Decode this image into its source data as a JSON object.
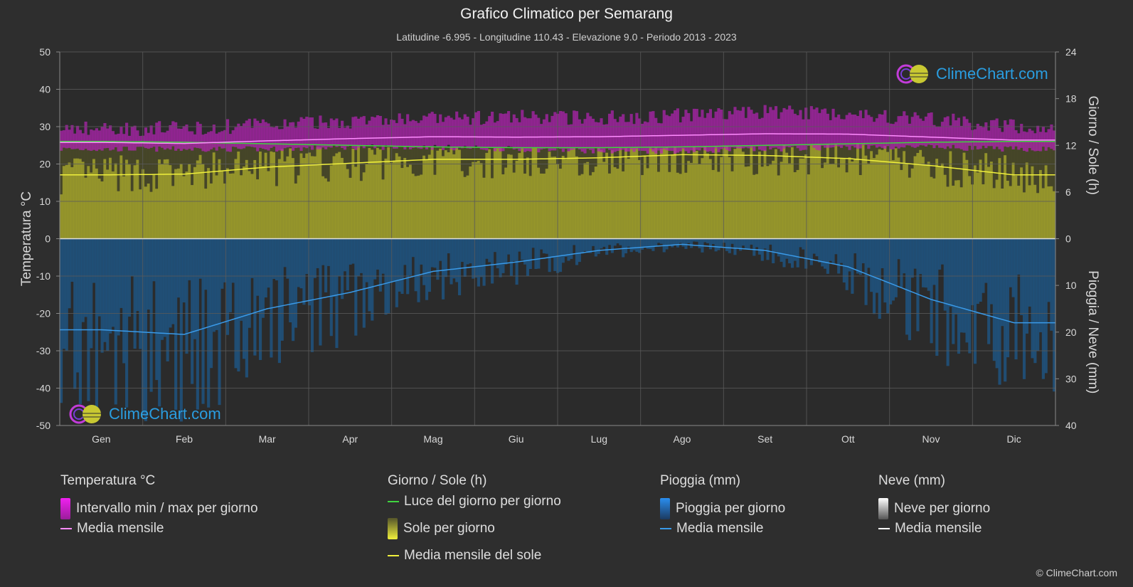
{
  "title": "Grafico Climatico per Semarang",
  "subtitle": "Latitudine -6.995 - Longitudine 110.43 - Elevazione 9.0 - Periodo 2013 - 2023",
  "logo_text": "ClimeChart.com",
  "copyright": "© ClimeChart.com",
  "axes": {
    "left_label": "Temperatura °C",
    "right_top_label": "Giorno / Sole (h)",
    "right_bottom_label": "Pioggia / Neve (mm)",
    "left_ticks": [
      50,
      40,
      30,
      20,
      10,
      0,
      -10,
      -20,
      -30,
      -40,
      -50
    ],
    "right_top_ticks": [
      24,
      18,
      12,
      6,
      0
    ],
    "right_bottom_ticks": [
      10,
      20,
      30,
      40
    ]
  },
  "legend": {
    "temp_head": "Temperatura °C",
    "temp_range": "Intervallo min / max per giorno",
    "temp_mean": "Media mensile",
    "sun_head": "Giorno / Sole (h)",
    "daylight": "Luce del giorno per giorno",
    "sun_day": "Sole per giorno",
    "sun_mean": "Media mensile del sole",
    "rain_head": "Pioggia (mm)",
    "rain_day": "Pioggia per giorno",
    "rain_mean": "Media mensile",
    "snow_head": "Neve (mm)",
    "snow_day": "Neve per giorno",
    "snow_mean": "Media mensile"
  },
  "colors": {
    "temp_range": "#d12bd1",
    "temp_mean": "#ff8cff",
    "daylight": "#3fd43f",
    "sun": "#c8c832",
    "sun_mean": "#f0f03c",
    "rain": "#1f78c8",
    "rain_mean": "#3a9ae8",
    "snow": "#ffffff"
  },
  "chart_data": {
    "type": "area",
    "months": [
      "Gen",
      "Feb",
      "Mar",
      "Apr",
      "Mag",
      "Giu",
      "Lug",
      "Ago",
      "Set",
      "Ott",
      "Nov",
      "Dic"
    ],
    "temp_max_c": [
      29.5,
      29.5,
      30.5,
      31.5,
      32,
      32.5,
      32.5,
      33,
      34,
      33.5,
      32,
      30
    ],
    "temp_min_c": [
      24,
      24,
      24,
      24.5,
      24.5,
      24,
      23.5,
      23.5,
      24,
      24.5,
      24.5,
      24
    ],
    "temp_mean_c": [
      25.8,
      25.5,
      26.2,
      26.8,
      27.3,
      27.2,
      27.3,
      27.7,
      28.1,
      28.0,
      27.2,
      26.4
    ],
    "daylight_h": [
      12.5,
      12.4,
      12.2,
      12.0,
      11.8,
      11.7,
      11.7,
      11.8,
      12.0,
      12.2,
      12.4,
      12.5
    ],
    "sun_mean_h": [
      8.2,
      8.3,
      9.2,
      9.7,
      10.2,
      10.2,
      10.4,
      10.8,
      10.7,
      10.3,
      9.4,
      8.2
    ],
    "rain_mean_mm": [
      19.5,
      20.5,
      15.0,
      11.5,
      7.0,
      5.0,
      2.5,
      1.2,
      2.5,
      6.0,
      13.0,
      18.0
    ],
    "snow_mean_mm": [
      0,
      0,
      0,
      0,
      0,
      0,
      0,
      0,
      0,
      0,
      0,
      0
    ],
    "temp_range_c": [
      -50,
      50
    ],
    "sun_range_h": [
      0,
      24
    ],
    "rain_range_mm": [
      0,
      40
    ]
  }
}
